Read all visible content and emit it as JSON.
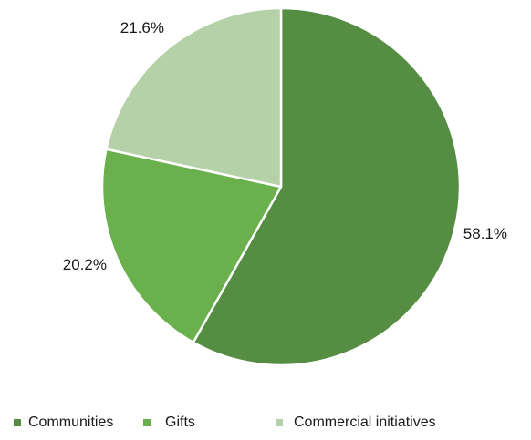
{
  "chart_data": {
    "type": "pie",
    "title": "",
    "legend_position": "bottom",
    "start_angle_deg": 0,
    "direction": "clockwise",
    "slices": [
      {
        "label": "Communities",
        "value": 58.1,
        "display": "58.1%",
        "color": "#558e43"
      },
      {
        "label": "Gifts",
        "value": 20.2,
        "display": "20.2%",
        "color": "#6ab04c"
      },
      {
        "label": "Commercial initiatives",
        "value": 21.6,
        "display": "21.6%",
        "color": "#b5d1a8"
      }
    ]
  }
}
